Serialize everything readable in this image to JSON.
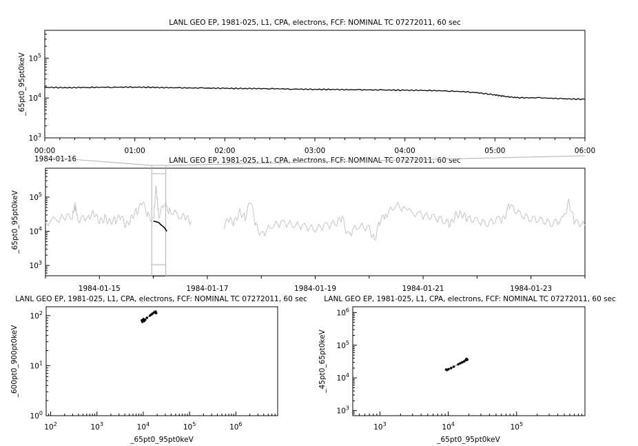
{
  "chart_data": [
    {
      "id": "top",
      "type": "line",
      "title": "LANL GEO EP, 1981-025, L1, CPA, electrons, FCF: NOMINAL TC 07272011, 60 sec",
      "ylabel": "_65pt0_95pt0keV",
      "xlabel": "",
      "date_label": "1984-01-16",
      "x_ticks": [
        "00:00",
        "01:00",
        "02:00",
        "03:00",
        "04:00",
        "05:00",
        "06:00"
      ],
      "x_range_hours": [
        0,
        6
      ],
      "y_scale": "log",
      "ylim": [
        1000,
        500000
      ],
      "y_ticks": [
        {
          "label": "10",
          "exp": "3",
          "v": 1000
        },
        {
          "label": "10",
          "exp": "4",
          "v": 10000
        },
        {
          "label": "10",
          "exp": "5",
          "v": 100000
        }
      ],
      "series": [
        {
          "color": "#000000",
          "x": [
            0,
            0.25,
            0.5,
            0.75,
            1.0,
            1.25,
            1.5,
            1.75,
            2.0,
            2.25,
            2.5,
            2.75,
            3.0,
            3.25,
            3.5,
            3.75,
            4.0,
            4.25,
            4.5,
            4.75,
            5.0,
            5.1,
            5.25,
            5.5,
            5.75,
            6.0
          ],
          "y": [
            18500,
            18200,
            18500,
            18700,
            18800,
            18400,
            18000,
            17800,
            17500,
            17300,
            17200,
            16800,
            16500,
            16300,
            16100,
            15900,
            15700,
            15500,
            15000,
            14000,
            12000,
            11000,
            10200,
            10100,
            9600,
            9300
          ]
        }
      ]
    },
    {
      "id": "overview",
      "type": "line",
      "title": "LANL GEO EP, 1981-025, L1, CPA, electrons, FCF: NOMINAL TC 07272011, 60 sec",
      "ylabel": "_65pt0_95pt0keV",
      "xlabel": "",
      "x_ticks": [
        "1984-01-15",
        "1984-01-17",
        "1984-01-19",
        "1984-01-21",
        "1984-01-23"
      ],
      "x_range_days": [
        0,
        10
      ],
      "y_scale": "log",
      "ylim": [
        500,
        700000
      ],
      "y_ticks": [
        {
          "label": "10",
          "exp": "3",
          "v": 1000
        },
        {
          "label": "10",
          "exp": "4",
          "v": 10000
        },
        {
          "label": "10",
          "exp": "5",
          "v": 100000
        }
      ],
      "series": [
        {
          "color": "#c8c8c8",
          "x": [
            0,
            0.3,
            0.5,
            0.55,
            0.6,
            0.8,
            0.9,
            1.0,
            1.1,
            1.2,
            1.3,
            1.4,
            1.5,
            1.6,
            1.7,
            1.8,
            1.9,
            2.0,
            2.05,
            2.1,
            2.2,
            2.3,
            2.5,
            2.6,
            2.7
          ],
          "y": [
            18000,
            25000,
            30000,
            60000,
            22000,
            28000,
            35000,
            18000,
            25000,
            20000,
            22000,
            26000,
            15000,
            28000,
            40000,
            70000,
            30000,
            22000,
            200000,
            30000,
            60000,
            40000,
            30000,
            25000,
            20000
          ]
        },
        {
          "color": "#c8c8c8",
          "x": [
            3.3,
            3.4,
            3.5,
            3.6,
            3.7,
            3.8,
            3.9,
            4.0,
            4.2,
            4.4,
            4.6,
            4.8,
            5.0,
            5.2,
            5.4,
            5.5,
            5.6,
            5.8,
            6.0,
            6.1,
            6.2,
            6.3,
            6.5,
            6.7,
            7.0,
            7.2,
            7.4,
            7.5,
            7.6,
            7.7,
            7.8,
            8.0,
            8.2,
            8.4,
            8.5,
            8.6,
            8.8,
            9.0,
            9.2,
            9.4,
            9.6,
            9.7,
            9.8,
            10.0
          ],
          "y": [
            15000,
            22000,
            18000,
            40000,
            25000,
            80000,
            15000,
            8000,
            15000,
            18000,
            16000,
            14000,
            12000,
            15000,
            18000,
            25000,
            8000,
            15000,
            12000,
            6000,
            20000,
            30000,
            60000,
            40000,
            30000,
            25000,
            22000,
            15000,
            30000,
            35000,
            25000,
            20000,
            18000,
            22000,
            25000,
            60000,
            30000,
            25000,
            20000,
            18000,
            22000,
            80000,
            20000,
            15000
          ]
        }
      ],
      "highlight": {
        "x": [
          2.0,
          2.1,
          2.15,
          2.2,
          2.25
        ],
        "y": [
          20000,
          18000,
          15000,
          13000,
          10000
        ]
      },
      "window_days": [
        1.97,
        2.23
      ]
    },
    {
      "id": "scatter1",
      "type": "scatter",
      "title": "LANL GEO EP, 1981-025, L1, CPA, electrons, FCF: NOMINAL TC 07272011, 60 sec",
      "xlabel": "_65pt0_95pt0keV",
      "ylabel": "_600pt0_900pt0keV",
      "x_scale": "log",
      "y_scale": "log",
      "xlim": [
        80,
        8000000
      ],
      "ylim": [
        1,
        150
      ],
      "x_ticks": [
        {
          "label": "10",
          "exp": "2",
          "v": 100
        },
        {
          "label": "10",
          "exp": "3",
          "v": 1000
        },
        {
          "label": "10",
          "exp": "4",
          "v": 10000
        },
        {
          "label": "10",
          "exp": "5",
          "v": 100000
        },
        {
          "label": "10",
          "exp": "6",
          "v": 1000000
        }
      ],
      "y_ticks": [
        {
          "label": "10",
          "exp": "0",
          "v": 1
        },
        {
          "label": "10",
          "exp": "1",
          "v": 10
        },
        {
          "label": "10",
          "exp": "2",
          "v": 100
        }
      ],
      "points": {
        "x": [
          9300,
          9600,
          10100,
          10500,
          11000,
          12000,
          14000,
          15000,
          16000,
          17000,
          18000,
          18500,
          19000
        ],
        "y": [
          80,
          75,
          85,
          78,
          82,
          90,
          100,
          105,
          110,
          115,
          118,
          120,
          112
        ]
      }
    },
    {
      "id": "scatter2",
      "type": "scatter",
      "title": "LANL GEO EP, 1981-025, L1, CPA, electrons, FCF: NOMINAL TC 07272011, 60 sec",
      "xlabel": "_65pt0_95pt0keV",
      "ylabel": "_45pt0_65pt0keV",
      "x_scale": "log",
      "y_scale": "log",
      "xlim": [
        400,
        1000000
      ],
      "ylim": [
        700,
        1500000
      ],
      "x_ticks": [
        {
          "label": "10",
          "exp": "3",
          "v": 1000
        },
        {
          "label": "10",
          "exp": "4",
          "v": 10000
        },
        {
          "label": "10",
          "exp": "5",
          "v": 100000
        }
      ],
      "y_ticks": [
        {
          "label": "10",
          "exp": "3",
          "v": 1000
        },
        {
          "label": "10",
          "exp": "4",
          "v": 10000
        },
        {
          "label": "10",
          "exp": "5",
          "v": 100000
        },
        {
          "label": "10",
          "exp": "6",
          "v": 1000000
        }
      ],
      "points": {
        "x": [
          9300,
          9600,
          10100,
          11000,
          12000,
          14000,
          15000,
          16000,
          17000,
          18000,
          18500,
          19000
        ],
        "y": [
          18000,
          17500,
          18500,
          20000,
          22000,
          26000,
          28000,
          30000,
          32000,
          35000,
          38000,
          36000
        ]
      }
    }
  ]
}
